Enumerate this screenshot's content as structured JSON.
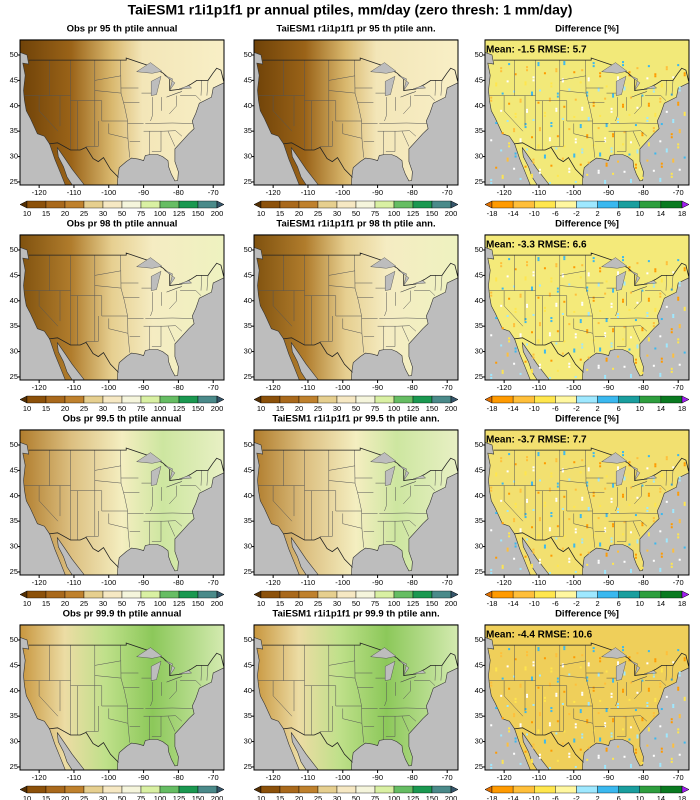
{
  "title": "TaiESM1 r1i1p1f1 pr annual ptiles, mm/day (zero thresh: 1 mm/day)",
  "lon_ticks": [
    "-120",
    "-110",
    "-100",
    "-90",
    "-80",
    "-70"
  ],
  "lat_ticks": [
    "50",
    "45",
    "40",
    "35",
    "30",
    "25"
  ],
  "precip_levels": [
    "10",
    "15",
    "20",
    "25",
    "30",
    "50",
    "75",
    "100",
    "125",
    "150",
    "200"
  ],
  "diff_levels": [
    "-18",
    "-14",
    "-10",
    "-6",
    "-2",
    "2",
    "6",
    "10",
    "14",
    "18"
  ],
  "rows": [
    {
      "obs": "Obs pr 95 th ptile annual",
      "model": "TaiESM1 r1i1p1f1 pr 95 th ptile ann.",
      "diff": "Difference [%]",
      "stats": "Mean: -1.5  RMSE: 5.7"
    },
    {
      "obs": "Obs pr 98 th ptile annual",
      "model": "TaiESM1 r1i1p1f1 pr 98 th ptile ann.",
      "diff": "Difference [%]",
      "stats": "Mean: -3.3  RMSE: 6.6"
    },
    {
      "obs": "Obs pr 99.5 th ptile annual",
      "model": "TaiESM1 r1i1p1f1 pr 99.5 th ptile ann.",
      "diff": "Difference [%]",
      "stats": "Mean: -3.7  RMSE: 7.7"
    },
    {
      "obs": "Obs pr 99.9 th ptile annual",
      "model": "TaiESM1 r1i1p1f1 pr 99.9 th ptile ann.",
      "diff": "Difference [%]",
      "stats": "Mean: -4.4  RMSE: 10.6"
    }
  ]
}
